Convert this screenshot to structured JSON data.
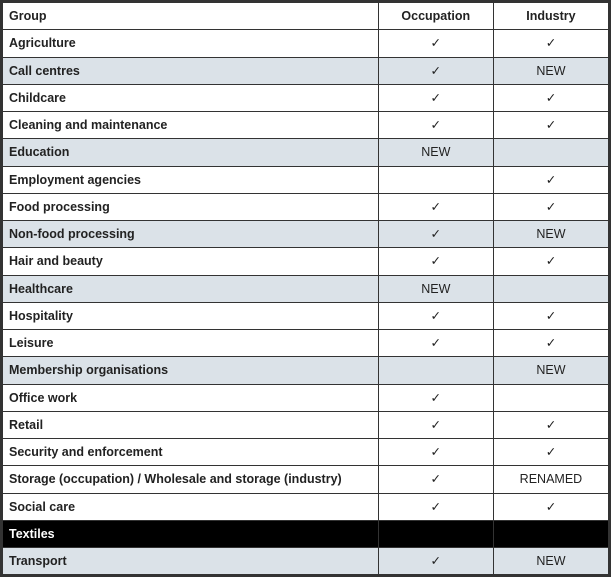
{
  "table": {
    "columns": [
      "Group",
      "Occupation",
      "Industry"
    ],
    "check": "✓",
    "colors": {
      "shaded_bg": "#dbe2e8",
      "black_bg": "#000000",
      "border": "#333333",
      "text": "#222222"
    },
    "font": {
      "family": "Arial",
      "size_pt": 9.5,
      "header_weight": "bold"
    },
    "column_widths_pct": [
      62,
      19,
      19
    ],
    "rows": [
      {
        "group": "Agriculture",
        "occupation": "✓",
        "industry": "✓",
        "shaded": false
      },
      {
        "group": "Call centres",
        "occupation": "✓",
        "industry": "NEW",
        "shaded": true
      },
      {
        "group": "Childcare",
        "occupation": "✓",
        "industry": "✓",
        "shaded": false
      },
      {
        "group": "Cleaning and maintenance",
        "occupation": "✓",
        "industry": "✓",
        "shaded": false
      },
      {
        "group": "Education",
        "occupation": "NEW",
        "industry": "",
        "shaded": true
      },
      {
        "group": "Employment agencies",
        "occupation": "",
        "industry": "✓",
        "shaded": false
      },
      {
        "group": "Food processing",
        "occupation": "✓",
        "industry": "✓",
        "shaded": false
      },
      {
        "group": "Non-food processing",
        "occupation": "✓",
        "industry": "NEW",
        "shaded": true
      },
      {
        "group": "Hair and beauty",
        "occupation": "✓",
        "industry": "✓",
        "shaded": false
      },
      {
        "group": "Healthcare",
        "occupation": "NEW",
        "industry": "",
        "shaded": true
      },
      {
        "group": "Hospitality",
        "occupation": "✓",
        "industry": "✓",
        "shaded": false
      },
      {
        "group": "Leisure",
        "occupation": "✓",
        "industry": "✓",
        "shaded": false
      },
      {
        "group": "Membership organisations",
        "occupation": "",
        "industry": "NEW",
        "shaded": true
      },
      {
        "group": "Office work",
        "occupation": "✓",
        "industry": "",
        "shaded": false
      },
      {
        "group": "Retail",
        "occupation": "✓",
        "industry": "✓",
        "shaded": false
      },
      {
        "group": "Security and enforcement",
        "occupation": "✓",
        "industry": "✓",
        "shaded": false
      },
      {
        "group": "Storage (occupation) / Wholesale and storage (industry)",
        "occupation": "✓",
        "industry": "RENAMED",
        "shaded": false
      },
      {
        "group": "Social care",
        "occupation": "✓",
        "industry": "✓",
        "shaded": false
      },
      {
        "group": "Textiles",
        "occupation": "",
        "industry": "",
        "shaded": false,
        "black": true
      },
      {
        "group": "Transport",
        "occupation": "✓",
        "industry": "NEW",
        "shaded": true
      }
    ]
  }
}
